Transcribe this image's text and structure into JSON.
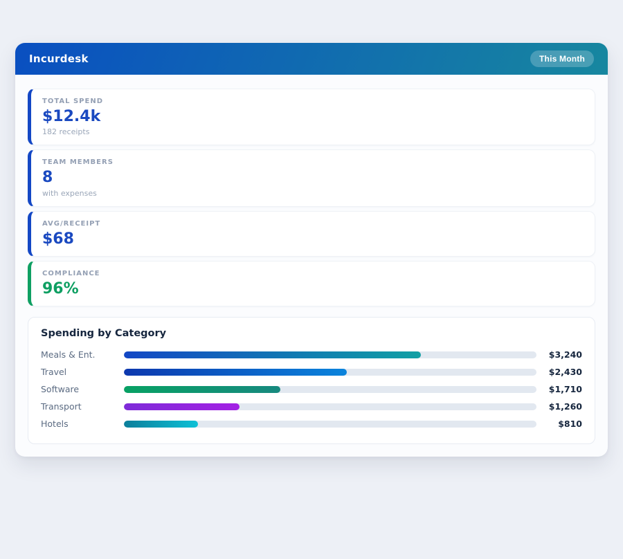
{
  "page": {
    "background": "#edf0f6"
  },
  "header": {
    "title": "Incurdesk",
    "badge_label": "This Month",
    "gradient_from": "#0a4fc1",
    "gradient_to": "#17879f"
  },
  "stats": [
    {
      "label": "TOTAL SPEND",
      "value": "$12.4k",
      "sub": "182 receipts",
      "accent": "#1347c5",
      "value_color": "#1a49c0"
    },
    {
      "label": "TEAM MEMBERS",
      "value": "8",
      "sub": "with expenses",
      "accent": "#1347c5",
      "value_color": "#1a49c0"
    },
    {
      "label": "AVG/RECEIPT",
      "value": "$68",
      "sub": "",
      "accent": "#1347c5",
      "value_color": "#1a49c0"
    },
    {
      "label": "COMPLIANCE",
      "value": "96%",
      "sub": "",
      "accent": "#0e9f62",
      "value_color": "#0e9f62"
    }
  ],
  "chart_data": {
    "type": "bar",
    "orientation": "horizontal",
    "title": "Spending by Category",
    "categories": [
      "Meals & Ent.",
      "Travel",
      "Software",
      "Transport",
      "Hotels"
    ],
    "values": [
      3240,
      2430,
      1710,
      1260,
      810
    ],
    "value_labels": [
      "$3,240",
      "$2,430",
      "$1,710",
      "$1,260",
      "$810"
    ],
    "scale_max": 4500,
    "track_color": "#e2e8f0",
    "bar_gradients": [
      [
        "#1347c5",
        "#12a0a4"
      ],
      [
        "#0d38ae",
        "#0b84dc"
      ],
      [
        "#08a164",
        "#17897f"
      ],
      [
        "#7e2bd8",
        "#a321e4"
      ],
      [
        "#0d7f9b",
        "#0dc0d6"
      ]
    ]
  }
}
